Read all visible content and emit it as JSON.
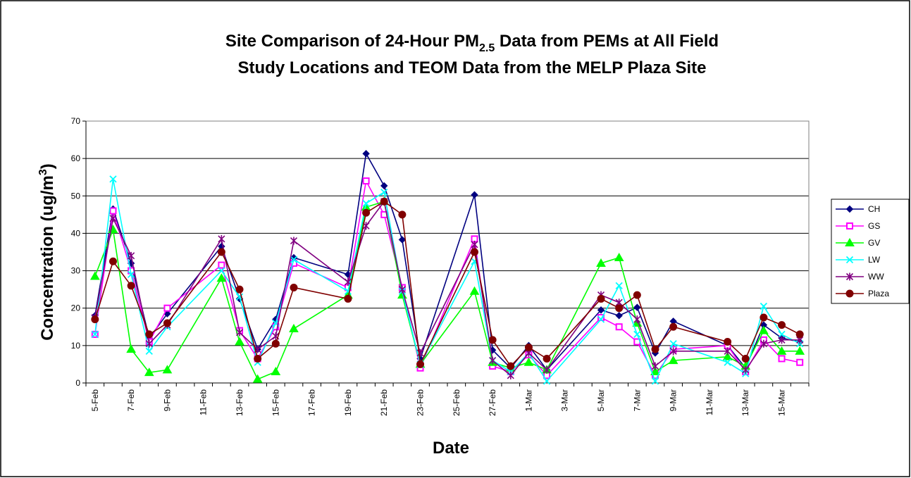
{
  "chart_data": {
    "type": "line",
    "title": [
      [
        "Site Comparison of 24-Hour PM",
        "2.5",
        " Data from PEMs at All Field"
      ],
      [
        "Study Locations and TEOM Data from the MELP Plaza Site"
      ]
    ],
    "xlabel": "Date",
    "ylabel": [
      "Concentration (ug/m",
      "3",
      ")"
    ],
    "x": [
      "5-Feb",
      "6-Feb",
      "7-Feb",
      "8-Feb",
      "9-Feb",
      "12-Feb",
      "13-Feb",
      "14-Feb",
      "15-Feb",
      "16-Feb",
      "19-Feb",
      "20-Feb",
      "21-Feb",
      "22-Feb",
      "23-Feb",
      "26-Feb",
      "27-Feb",
      "28-Feb",
      "1-Mar",
      "2-Mar",
      "5-Mar",
      "6-Mar",
      "7-Mar",
      "8-Mar",
      "9-Mar",
      "12-Mar",
      "13-Mar",
      "14-Mar",
      "15-Mar",
      "16-Mar"
    ],
    "xticks": [
      "5-Feb",
      "7-Feb",
      "9-Feb",
      "11-Feb",
      "13-Feb",
      "15-Feb",
      "17-Feb",
      "19-Feb",
      "21-Feb",
      "23-Feb",
      "25-Feb",
      "27-Feb",
      "1-Mar",
      "3-Mar",
      "5-Mar",
      "7-Mar",
      "9-Mar",
      "11-Mar",
      "13-Mar",
      "15-Mar"
    ],
    "ylim": [
      0,
      70
    ],
    "yticks": [
      0,
      10,
      20,
      30,
      40,
      50,
      60,
      70
    ],
    "grid": true,
    "legend": "right",
    "series": [
      {
        "name": "CH",
        "color": "#000080",
        "marker": "diamond",
        "values": [
          18,
          46.5,
          32,
          12,
          18.5,
          36.5,
          22.5,
          9,
          17,
          33.5,
          29,
          61.3,
          52.7,
          38.3,
          6.5,
          50.3,
          8.8,
          4,
          10,
          3.5,
          19.5,
          18,
          20.2,
          8,
          16.5,
          10,
          4,
          15.5,
          12,
          11
        ]
      },
      {
        "name": "GS",
        "color": "#FF00FF",
        "marker": "square",
        "values": [
          13,
          46,
          30,
          11,
          20,
          31.5,
          14,
          6.5,
          15,
          32,
          25.5,
          54,
          45,
          25.5,
          4,
          38.5,
          4.5,
          3,
          7.5,
          2,
          17.5,
          15,
          11,
          2,
          9,
          10,
          3,
          11.5,
          6.5,
          5.5
        ]
      },
      {
        "name": "GV",
        "color": "#00FF00",
        "marker": "triangle",
        "values": [
          28.5,
          41,
          9,
          2.8,
          3.5,
          28,
          11,
          1,
          3,
          14.5,
          23.5,
          47,
          48.5,
          23.5,
          5,
          24.5,
          5.5,
          4,
          5.5,
          3.5,
          32,
          33.5,
          16,
          3,
          6,
          7,
          4.5,
          14,
          8.5,
          8.5
        ]
      },
      {
        "name": "LW",
        "color": "#00FFFF",
        "marker": "x",
        "values": [
          13,
          54.5,
          29,
          8.5,
          15,
          30,
          23,
          5.5,
          16,
          33,
          24.5,
          48,
          51,
          24.5,
          5,
          32.5,
          6,
          3,
          8,
          0.5,
          17,
          26,
          13,
          0.5,
          10.5,
          5.5,
          2.5,
          20.5,
          13,
          10.5
        ]
      },
      {
        "name": "WW",
        "color": "#800080",
        "marker": "star",
        "values": [
          17.5,
          44,
          34,
          10.5,
          15.5,
          38.5,
          13.5,
          9,
          12.5,
          38,
          27,
          42,
          48.5,
          25,
          8,
          37,
          6,
          2,
          8,
          3.5,
          23.5,
          21.5,
          17,
          4.5,
          8.5,
          8.5,
          3.5,
          10.5,
          11.5,
          11.5
        ]
      },
      {
        "name": "Plaza",
        "color": "#800000",
        "marker": "circle",
        "values": [
          17,
          32.5,
          26,
          13,
          16,
          35,
          25,
          6.5,
          10.5,
          25.5,
          22.5,
          45.5,
          48.5,
          45,
          5,
          35,
          11.5,
          4.5,
          9.5,
          6.5,
          22.5,
          20,
          23.5,
          9,
          15,
          11,
          6.5,
          17.5,
          15.5,
          13
        ]
      }
    ]
  }
}
